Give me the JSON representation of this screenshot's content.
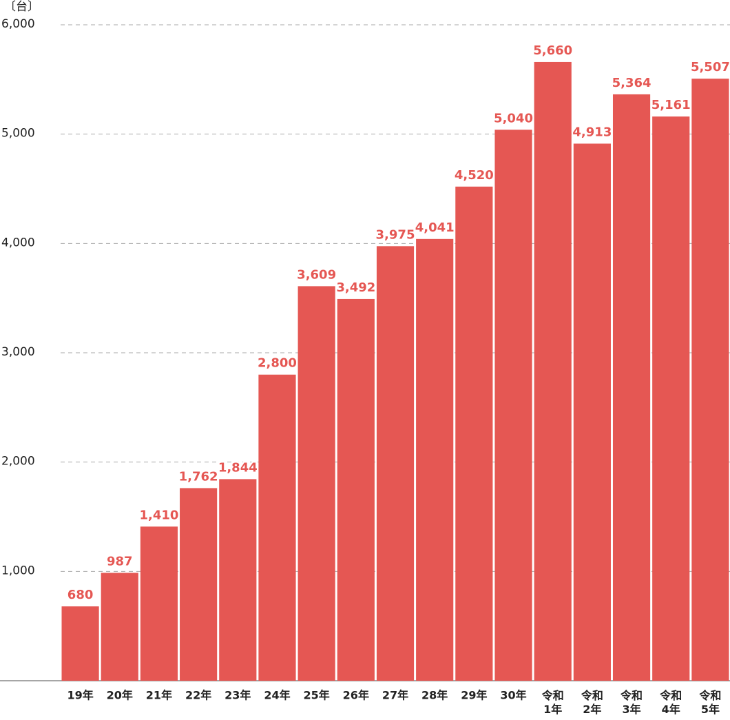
{
  "chart_data": {
    "type": "bar",
    "y_label": "〔台〕",
    "categories": [
      "19年",
      "20年",
      "21年",
      "22年",
      "23年",
      "24年",
      "25年",
      "26年",
      "27年",
      "28年",
      "29年",
      "30年",
      "令和\n1年",
      "令和\n2年",
      "令和\n3年",
      "令和\n4年",
      "令和\n5年"
    ],
    "values": [
      680,
      987,
      1410,
      1762,
      1844,
      2800,
      3609,
      3492,
      3975,
      4041,
      4520,
      5040,
      5660,
      4913,
      5364,
      5161,
      5507
    ],
    "value_labels": [
      "680",
      "987",
      "1,410",
      "1,762",
      "1,844",
      "2,800",
      "3,609",
      "3,492",
      "3,975",
      "4,041",
      "4,520",
      "5,040",
      "5,660",
      "4,913",
      "5,364",
      "5,161",
      "5,507"
    ],
    "color": "#e55753",
    "ylim": [
      0,
      6000
    ],
    "yticks": [
      {
        "value": 1000,
        "label": "1,000"
      },
      {
        "value": 2000,
        "label": "2,000"
      },
      {
        "value": 3000,
        "label": "3,000"
      },
      {
        "value": 4000,
        "label": "4,000"
      },
      {
        "value": 5000,
        "label": "5,000"
      },
      {
        "value": 6000,
        "label": "6,000"
      }
    ],
    "grid": true
  }
}
